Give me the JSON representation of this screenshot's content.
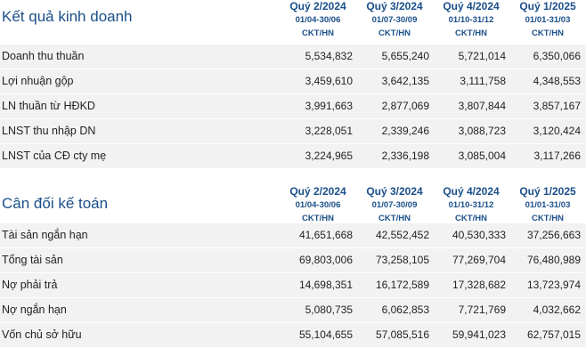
{
  "columns": [
    {
      "quarter": "Quý 2/2024",
      "range": "01/04-30/06",
      "code": "CKT/HN"
    },
    {
      "quarter": "Quý 3/2024",
      "range": "01/07-30/09",
      "code": "CKT/HN"
    },
    {
      "quarter": "Quý 4/2024",
      "range": "01/10-31/12",
      "code": "CKT/HN"
    },
    {
      "quarter": "Quý 1/2025",
      "range": "01/01-31/03",
      "code": "CKT/HN"
    }
  ],
  "business_results": {
    "title": "Kết quả kinh doanh",
    "rows": [
      {
        "label": "Doanh thu thuần",
        "values": [
          "5,534,832",
          "5,655,240",
          "5,721,014",
          "6,350,066"
        ]
      },
      {
        "label": "Lợi nhuận gộp",
        "values": [
          "3,459,610",
          "3,642,135",
          "3,111,758",
          "4,348,553"
        ]
      },
      {
        "label": "LN thuần từ HĐKD",
        "values": [
          "3,991,663",
          "2,877,069",
          "3,807,844",
          "3,857,167"
        ]
      },
      {
        "label": "LNST thu nhập DN",
        "values": [
          "3,228,051",
          "2,339,246",
          "3,088,723",
          "3,120,424"
        ]
      },
      {
        "label": "LNST của CĐ cty mẹ",
        "values": [
          "3,224,965",
          "2,336,198",
          "3,085,004",
          "3,117,266"
        ]
      }
    ]
  },
  "balance_sheet": {
    "title": "Cân đối kế toán",
    "rows": [
      {
        "label": "Tài sản ngắn hạn",
        "values": [
          "41,651,668",
          "42,552,452",
          "40,530,333",
          "37,256,663"
        ]
      },
      {
        "label": "Tổng tài sản",
        "values": [
          "69,803,006",
          "73,258,105",
          "77,269,704",
          "76,480,989"
        ]
      },
      {
        "label": "Nợ phải trả",
        "values": [
          "14,698,351",
          "16,172,589",
          "17,328,682",
          "13,723,974"
        ]
      },
      {
        "label": "Nợ ngắn hạn",
        "values": [
          "5,080,735",
          "6,062,853",
          "7,721,769",
          "4,032,662"
        ]
      },
      {
        "label": "Vốn chủ sở hữu",
        "values": [
          "55,104,655",
          "57,085,516",
          "59,941,023",
          "62,757,015"
        ]
      }
    ]
  }
}
